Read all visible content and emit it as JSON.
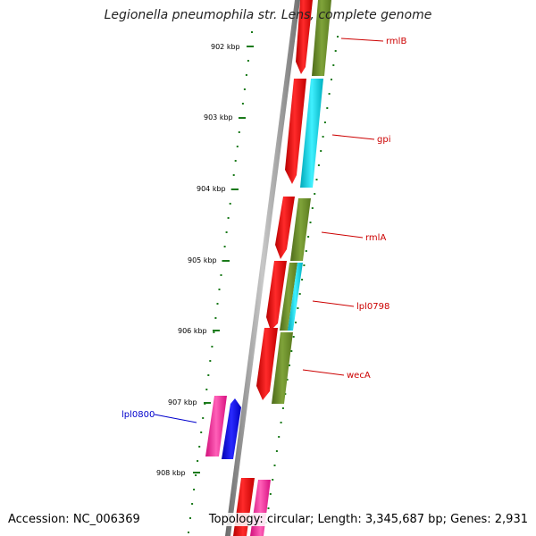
{
  "title": "Legionella pneumophila str. Lens, complete genome",
  "footer": {
    "accession": "Accession: NC_006369",
    "stats": "Topology: circular; Length: 3,345,687 bp; Genes: 2,931"
  },
  "ticks": [
    "902 kbp",
    "903 kbp",
    "904 kbp",
    "905 kbp",
    "906 kbp",
    "907 kbp",
    "908 kbp"
  ],
  "gene_labels": [
    {
      "name": "rmlB",
      "color": "#cc0000"
    },
    {
      "name": "gpi",
      "color": "#cc0000"
    },
    {
      "name": "rmlA",
      "color": "#cc0000"
    },
    {
      "name": "lpl0798",
      "color": "#cc0000"
    },
    {
      "name": "wecA",
      "color": "#cc0000"
    },
    {
      "name": "lpl0800",
      "color": "#0000cc"
    }
  ],
  "colors": {
    "forward_cds": "#ee0000",
    "reverse_olive": "#6b8e23",
    "reverse_cyan": "#00c8d8",
    "pink": "#ff1493",
    "blue": "#0000ee",
    "backbone": "#888888",
    "tick_green": "#1a7a1a"
  }
}
